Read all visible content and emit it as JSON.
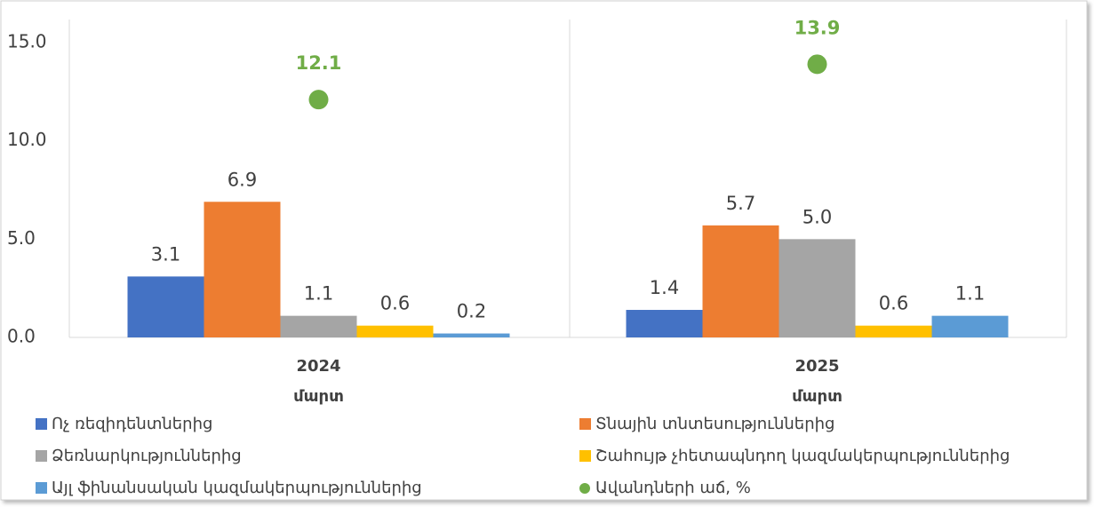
{
  "chart_data": {
    "type": "bar",
    "categories": [
      "2024",
      "2025"
    ],
    "category_sublabels": [
      "մարտ",
      "մարտ"
    ],
    "ylim": [
      0,
      15
    ],
    "yticks": [
      {
        "value": 0,
        "label": "0.0"
      },
      {
        "value": 5,
        "label": "5.0"
      },
      {
        "value": 10,
        "label": "10.0"
      },
      {
        "value": 15,
        "label": "15.0"
      }
    ],
    "grid": false,
    "legend": "bottom",
    "series": [
      {
        "name": "Ոչ ռեզիդենտներից",
        "color": "#4472c4",
        "type": "bar",
        "values": [
          3.1,
          1.4
        ],
        "value_labels": [
          "3.1",
          "1.4"
        ]
      },
      {
        "name": "Տնային տնտեսություններից",
        "color": "#ed7d31",
        "type": "bar",
        "values": [
          6.9,
          5.7
        ],
        "value_labels": [
          "6.9",
          "5.7"
        ]
      },
      {
        "name": "Ձեռնարկություններից",
        "color": "#a5a5a5",
        "type": "bar",
        "values": [
          1.1,
          5.0
        ],
        "value_labels": [
          "1.1",
          "5.0"
        ]
      },
      {
        "name": "Շահույթ չհետապնդող կազմակերպություններից",
        "color": "#ffc000",
        "type": "bar",
        "values": [
          0.6,
          0.6
        ],
        "value_labels": [
          "0.6",
          "0.6"
        ]
      },
      {
        "name": "Այլ ֆինանսական կազմակերպություններից",
        "color": "#5b9bd5",
        "type": "bar",
        "values": [
          0.2,
          1.1
        ],
        "value_labels": [
          "0.2",
          "1.1"
        ]
      },
      {
        "name": "Ավանդների աճ, %",
        "color": "#70ad47",
        "type": "scatter",
        "values": [
          12.1,
          13.9
        ],
        "value_labels": [
          "12.1",
          "13.9"
        ]
      }
    ]
  }
}
